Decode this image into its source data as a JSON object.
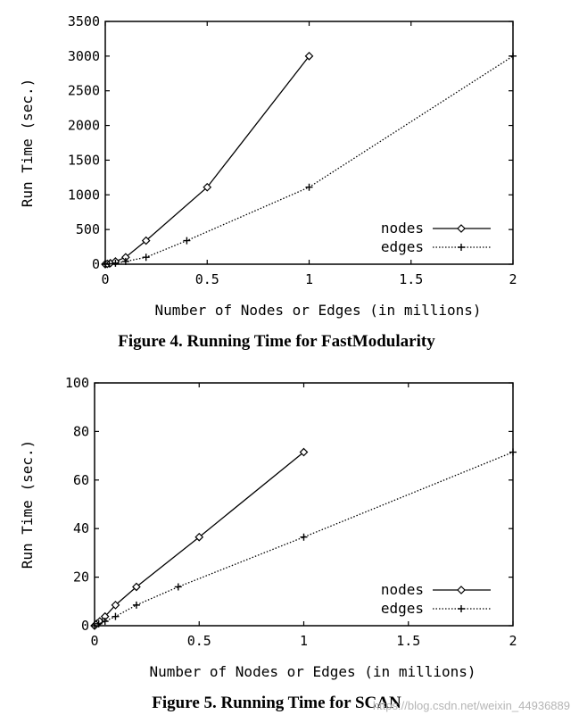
{
  "chart_data": [
    {
      "type": "line",
      "title": "",
      "caption": "Figure 4. Running Time for FastModularity",
      "xlabel": "Number of Nodes or Edges (in millions)",
      "ylabel": "Run Time (sec.)",
      "xlim": [
        0,
        2
      ],
      "ylim": [
        0,
        3500
      ],
      "xticks": [
        0,
        0.5,
        1,
        1.5,
        2
      ],
      "xtick_labels": [
        "0",
        "0.5",
        "1",
        "1.5",
        "2"
      ],
      "yticks": [
        0,
        500,
        1000,
        1500,
        2000,
        2500,
        3000,
        3500
      ],
      "ytick_labels": [
        "0",
        "500",
        "1000",
        "1500",
        "2000",
        "2500",
        "3000",
        "3500"
      ],
      "legend_position": "bottom-right",
      "series": [
        {
          "name": "nodes",
          "style": "solid",
          "marker": "diamond",
          "x": [
            0,
            0.01,
            0.025,
            0.05,
            0.1,
            0.2,
            0.5,
            1
          ],
          "y": [
            0,
            5,
            15,
            40,
            100,
            340,
            1110,
            3000
          ]
        },
        {
          "name": "edges",
          "style": "dotted",
          "marker": "plus",
          "x": [
            0,
            0.02,
            0.05,
            0.1,
            0.2,
            0.4,
            1,
            2
          ],
          "y": [
            0,
            5,
            15,
            40,
            100,
            340,
            1110,
            3000
          ]
        }
      ]
    },
    {
      "type": "line",
      "title": "",
      "caption": "Figure 5. Running Time for SCAN",
      "xlabel": "Number of Nodes or Edges (in millions)",
      "ylabel": "Run Time (sec.)",
      "xlim": [
        0,
        2
      ],
      "ylim": [
        0,
        100
      ],
      "xticks": [
        0,
        0.5,
        1,
        1.5,
        2
      ],
      "xtick_labels": [
        "0",
        "0.5",
        "1",
        "1.5",
        "2"
      ],
      "yticks": [
        0,
        20,
        40,
        60,
        80,
        100
      ],
      "ytick_labels": [
        "0",
        "20",
        "40",
        "60",
        "80",
        "100"
      ],
      "legend_position": "bottom-right",
      "series": [
        {
          "name": "nodes",
          "style": "solid",
          "marker": "diamond",
          "x": [
            0,
            0.01,
            0.025,
            0.05,
            0.1,
            0.2,
            0.5,
            1
          ],
          "y": [
            0,
            0.8,
            1.8,
            3.8,
            8.5,
            16,
            36.5,
            71.5
          ]
        },
        {
          "name": "edges",
          "style": "dotted",
          "marker": "plus",
          "x": [
            0,
            0.02,
            0.05,
            0.1,
            0.2,
            0.4,
            1,
            2
          ],
          "y": [
            0,
            0.8,
            1.8,
            3.8,
            8.5,
            16,
            36.5,
            71.5
          ]
        }
      ]
    }
  ],
  "watermark": "https://blog.csdn.net/weixin_44936889"
}
